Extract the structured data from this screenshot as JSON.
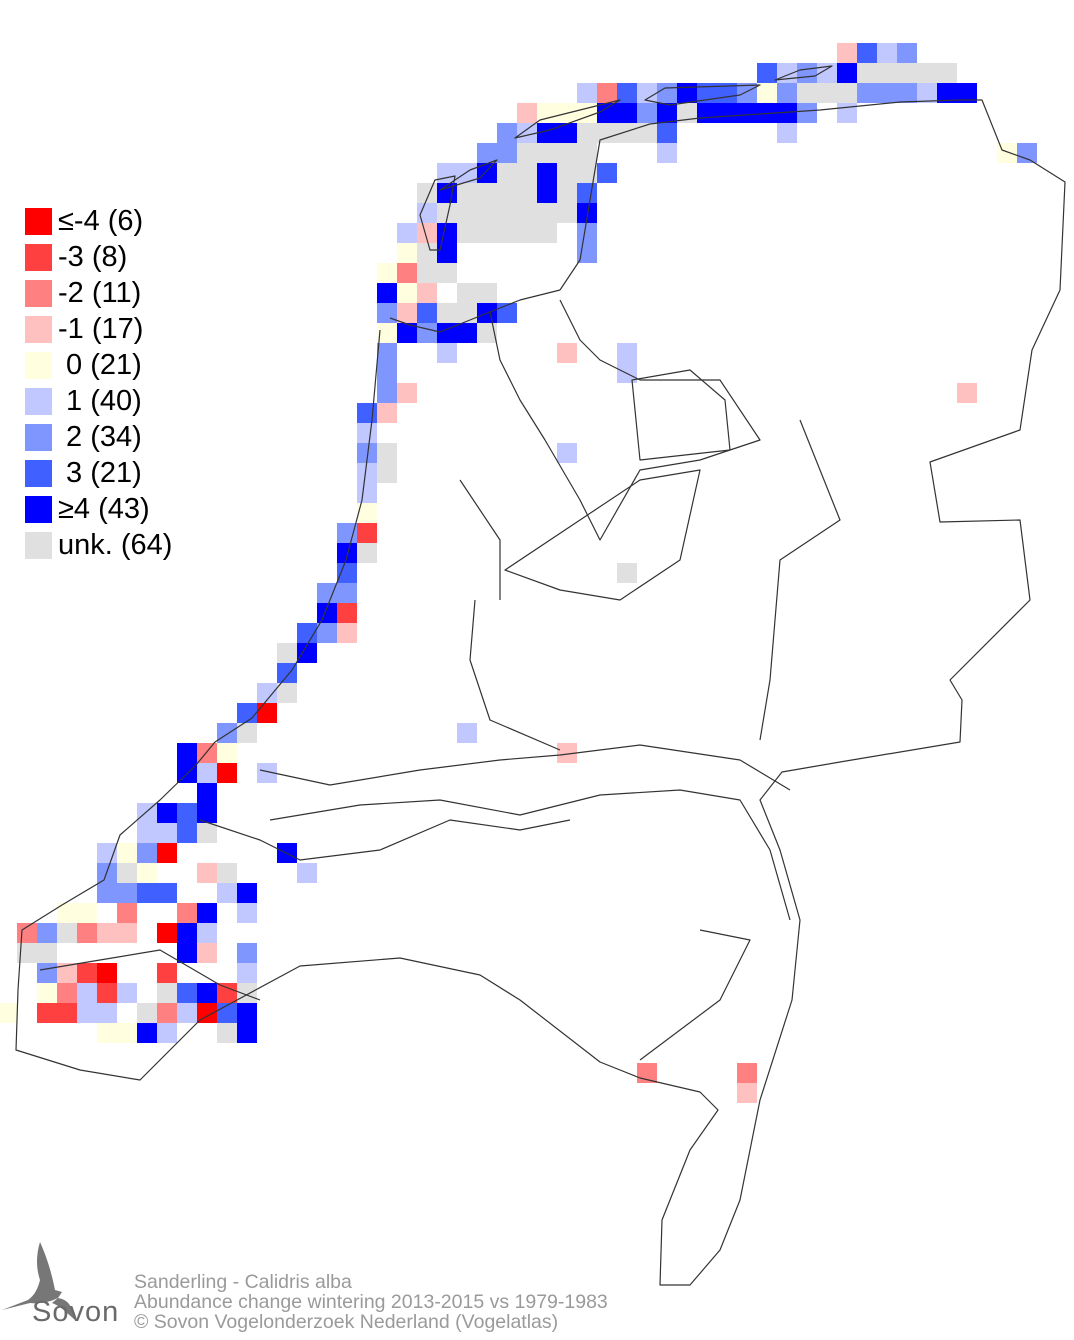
{
  "legend": {
    "items": [
      {
        "label": "≤-4 (6)",
        "value": -4,
        "color": "#ff0000"
      },
      {
        "label": "-3 (8)",
        "value": -3,
        "color": "#ff4040"
      },
      {
        "label": "-2 (11)",
        "value": -2,
        "color": "#ff8080"
      },
      {
        "label": "-1 (17)",
        "value": -1,
        "color": "#ffc0c0"
      },
      {
        "label": " 0 (21)",
        "value": 0,
        "color": "#ffffe0"
      },
      {
        "label": " 1 (40)",
        "value": 1,
        "color": "#c0c8ff"
      },
      {
        "label": " 2 (34)",
        "value": 2,
        "color": "#8096ff"
      },
      {
        "label": " 3 (21)",
        "value": 3,
        "color": "#4060ff"
      },
      {
        "label": "≥4 (43)",
        "value": 4,
        "color": "#0000ff"
      },
      {
        "label": "unk. (64)",
        "value": "unk",
        "color": "#e0e0e0"
      }
    ]
  },
  "footer": {
    "species": "Sanderling - Calidris alba",
    "subtitle": "Abundance change wintering  2013-2015 vs 1979-1983",
    "copyright": "© Sovon Vogelonderzoek Nederland (Vogelatlas)"
  },
  "logo": {
    "text": "Sovon"
  }
}
